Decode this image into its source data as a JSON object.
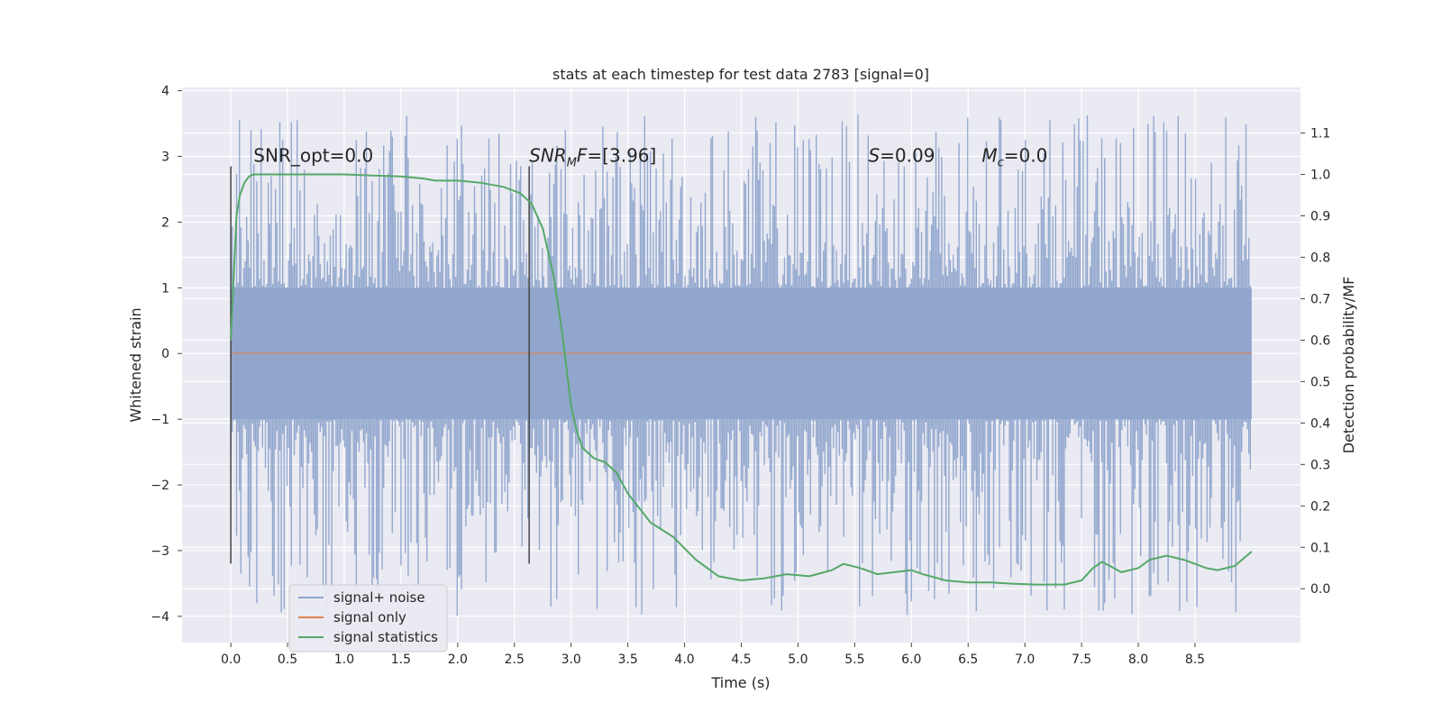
{
  "chart_data": {
    "type": "line",
    "title": "stats at each timestep for test data 2783 [signal=0]",
    "xlabel": "Time (s)",
    "ylabel": "Whitened strain",
    "y2label": "Detection probability/MF",
    "xlim": [
      -0.43,
      9.43
    ],
    "ylim": [
      -4.4,
      4.05
    ],
    "y2lim": [
      -0.13,
      1.21
    ],
    "x_ticks": [
      "0.0",
      "0.5",
      "1.0",
      "1.5",
      "2.0",
      "2.5",
      "3.0",
      "3.5",
      "4.0",
      "4.5",
      "5.0",
      "5.5",
      "6.0",
      "6.5",
      "7.0",
      "7.5",
      "8.0",
      "8.5"
    ],
    "y_ticks": [
      "4",
      "3",
      "2",
      "1",
      "0",
      "−1",
      "−2",
      "−3",
      "−4"
    ],
    "y2_ticks": [
      "1.1",
      "1.0",
      "0.9",
      "0.8",
      "0.7",
      "0.6",
      "0.5",
      "0.4",
      "0.3",
      "0.2",
      "0.1",
      "0.0"
    ],
    "grid": true,
    "legend_position": "lower-left",
    "series": [
      {
        "name": "signal+ noise",
        "color": "#8fa5cc",
        "kind": "noise-band",
        "x_range": [
          0.0,
          9.0
        ],
        "core_band": [
          -1.0,
          1.0
        ],
        "spike_envelope": [
          -4.0,
          3.65
        ]
      },
      {
        "name": "signal only",
        "color": "#dd8452",
        "x": [
          0.0,
          9.0
        ],
        "values": [
          0.0,
          0.0
        ]
      },
      {
        "name": "signal statistics",
        "color": "#55a868",
        "axis": "right",
        "x": [
          0.0,
          0.05,
          0.08,
          0.12,
          0.16,
          0.2,
          0.5,
          0.8,
          1.0,
          1.2,
          1.5,
          1.7,
          1.8,
          2.0,
          2.2,
          2.4,
          2.55,
          2.65,
          2.75,
          2.85,
          2.93,
          3.0,
          3.05,
          3.1,
          3.2,
          3.3,
          3.4,
          3.5,
          3.7,
          3.9,
          4.1,
          4.3,
          4.5,
          4.7,
          4.9,
          5.1,
          5.3,
          5.4,
          5.55,
          5.7,
          5.85,
          6.0,
          6.1,
          6.3,
          6.5,
          6.7,
          6.9,
          7.1,
          7.35,
          7.5,
          7.6,
          7.68,
          7.75,
          7.85,
          8.0,
          8.1,
          8.25,
          8.4,
          8.6,
          8.7,
          8.85,
          9.0
        ],
        "values": [
          0.6,
          0.9,
          0.95,
          0.98,
          0.995,
          1.0,
          1.0,
          1.0,
          1.0,
          0.998,
          0.995,
          0.99,
          0.985,
          0.985,
          0.98,
          0.97,
          0.955,
          0.93,
          0.87,
          0.75,
          0.6,
          0.44,
          0.38,
          0.34,
          0.315,
          0.305,
          0.28,
          0.23,
          0.16,
          0.125,
          0.07,
          0.03,
          0.02,
          0.025,
          0.035,
          0.03,
          0.045,
          0.06,
          0.05,
          0.035,
          0.04,
          0.045,
          0.035,
          0.02,
          0.015,
          0.015,
          0.012,
          0.01,
          0.01,
          0.02,
          0.05,
          0.065,
          0.055,
          0.04,
          0.05,
          0.07,
          0.08,
          0.07,
          0.05,
          0.045,
          0.055,
          0.09
        ]
      }
    ],
    "vlines": [
      {
        "x": 0.0,
        "ymin": -3.2,
        "ymax": 2.85,
        "color": "#444444"
      },
      {
        "x": 2.63,
        "ymin": -3.2,
        "ymax": 2.85,
        "color": "#444444"
      }
    ],
    "annotations": [
      {
        "id": "snr_opt",
        "x": 0.2,
        "y": 3.0,
        "text": "SNR_opt=0.0",
        "italic": false
      },
      {
        "id": "snr_mf",
        "x": 2.63,
        "y": 3.0,
        "parts": [
          "SNR",
          "M",
          "F=[3.96]"
        ],
        "italic": true
      },
      {
        "id": "s",
        "x": 5.62,
        "y": 3.0,
        "parts": [
          "S",
          "=0.09"
        ]
      },
      {
        "id": "mc",
        "x": 6.62,
        "y": 3.0,
        "parts": [
          "M",
          "c",
          "=0.0"
        ]
      }
    ]
  }
}
